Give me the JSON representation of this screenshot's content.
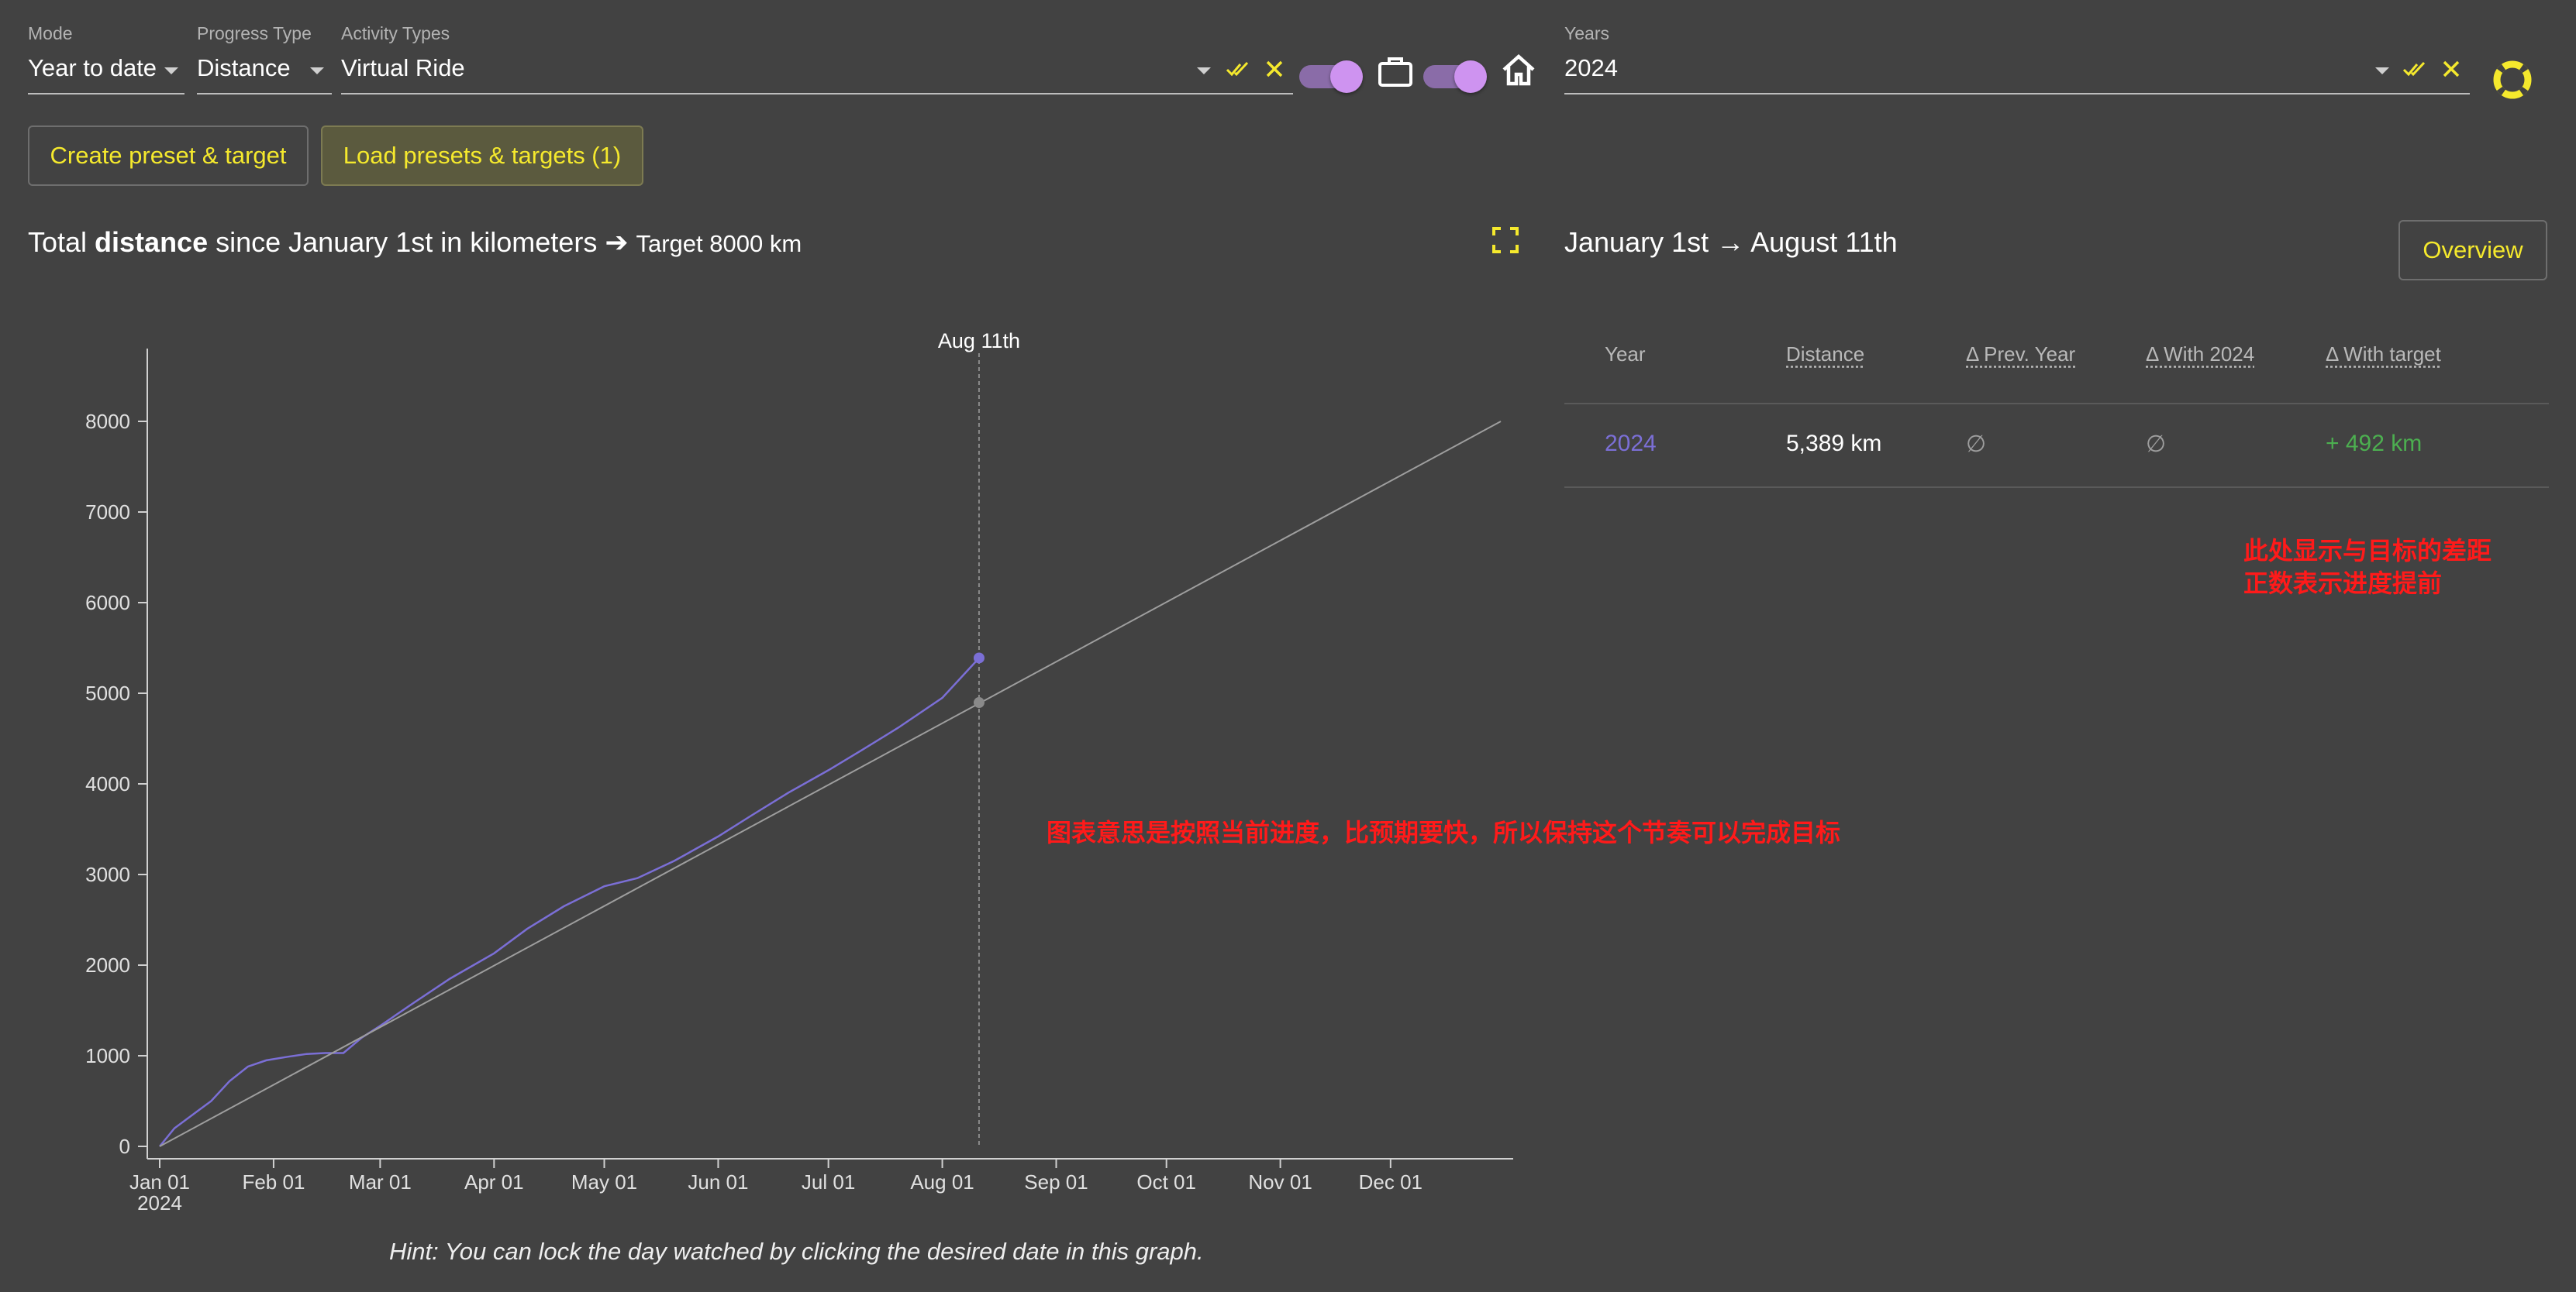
{
  "filters": {
    "mode": {
      "label": "Mode",
      "value": "Year to date"
    },
    "progress_type": {
      "label": "Progress Type",
      "value": "Distance"
    },
    "activity_types": {
      "label": "Activity Types",
      "value": "Virtual Ride"
    },
    "years": {
      "label": "Years",
      "value": "2024"
    }
  },
  "toggles": [
    {
      "state": "on"
    },
    {
      "state": "on"
    }
  ],
  "icons": {
    "select_all": "double-check-icon",
    "clear": "close-icon",
    "commute": "briefcase-icon",
    "home": "home-icon",
    "help": "lifebuoy-icon",
    "fullscreen": "fullscreen-icon"
  },
  "buttons": {
    "create_preset": "Create preset & target",
    "load_presets": "Load presets & targets (1)",
    "overview": "Overview"
  },
  "chart_header": {
    "prefix": "Total ",
    "bold": "distance",
    "suffix": " since January 1st in kilometers ➔ ",
    "target": "Target 8000 km"
  },
  "range": {
    "from": "January 1st",
    "arrow": "→",
    "to": "August 11th"
  },
  "table": {
    "headers": [
      "Year",
      "Distance",
      "Δ Prev. Year",
      "Δ With 2024",
      "Δ With target"
    ],
    "rows": [
      {
        "year": "2024",
        "distance": "5,389 km",
        "prev": "∅",
        "with2024": "∅",
        "target": "+ 492 km"
      }
    ]
  },
  "annotations": {
    "table_note_line1": "此处显示与目标的差距",
    "table_note_line2": "正数表示进度提前",
    "chart_note": "图表意思是按照当前进度，比预期要快，所以保持这个节奏可以完成目标"
  },
  "hint": "Hint: You can lock the day watched by clicking the desired date in this graph.",
  "colors": {
    "accent": "#f5e92d",
    "series": "#7b6fd6",
    "target_line": "#9e9e9e",
    "positive": "#4caf50",
    "annotation": "#ff1a1a"
  },
  "chart_data": {
    "type": "line",
    "x_type": "date",
    "xlim": [
      "2024-01-01",
      "2024-12-31"
    ],
    "ylim": [
      0,
      8000
    ],
    "yticks": [
      0,
      1000,
      2000,
      3000,
      4000,
      5000,
      6000,
      7000,
      8000
    ],
    "xticks": [
      {
        "date": "2024-01-01",
        "label": "Jan 01",
        "sublabel": "2024"
      },
      {
        "date": "2024-02-01",
        "label": "Feb 01"
      },
      {
        "date": "2024-03-01",
        "label": "Mar 01"
      },
      {
        "date": "2024-04-01",
        "label": "Apr 01"
      },
      {
        "date": "2024-05-01",
        "label": "May 01"
      },
      {
        "date": "2024-06-01",
        "label": "Jun 01"
      },
      {
        "date": "2024-07-01",
        "label": "Jul 01"
      },
      {
        "date": "2024-08-01",
        "label": "Aug 01"
      },
      {
        "date": "2024-09-01",
        "label": "Sep 01"
      },
      {
        "date": "2024-10-01",
        "label": "Oct 01"
      },
      {
        "date": "2024-11-01",
        "label": "Nov 01"
      },
      {
        "date": "2024-12-01",
        "label": "Dec 01"
      }
    ],
    "marker": {
      "date": "2024-08-11",
      "label": "Aug 11th",
      "actual": 5389,
      "target": 4897
    },
    "series": [
      {
        "role": "actual",
        "x": [
          "2024-01-01",
          "2024-01-05",
          "2024-01-10",
          "2024-01-15",
          "2024-01-20",
          "2024-01-25",
          "2024-01-30",
          "2024-02-05",
          "2024-02-10",
          "2024-02-15",
          "2024-02-20",
          "2024-02-25",
          "2024-03-01",
          "2024-03-10",
          "2024-03-20",
          "2024-04-01",
          "2024-04-10",
          "2024-04-20",
          "2024-05-01",
          "2024-05-10",
          "2024-05-20",
          "2024-06-01",
          "2024-06-10",
          "2024-06-20",
          "2024-07-01",
          "2024-07-10",
          "2024-07-20",
          "2024-08-01",
          "2024-08-11"
        ],
        "y": [
          0,
          200,
          350,
          500,
          720,
          880,
          950,
          990,
          1020,
          1030,
          1030,
          1200,
          1330,
          1580,
          1850,
          2130,
          2400,
          2650,
          2870,
          2960,
          3150,
          3420,
          3650,
          3900,
          4150,
          4370,
          4620,
          4950,
          5389
        ]
      },
      {
        "role": "target",
        "x": [
          "2024-01-01",
          "2024-12-31"
        ],
        "y": [
          0,
          8000
        ]
      }
    ]
  }
}
